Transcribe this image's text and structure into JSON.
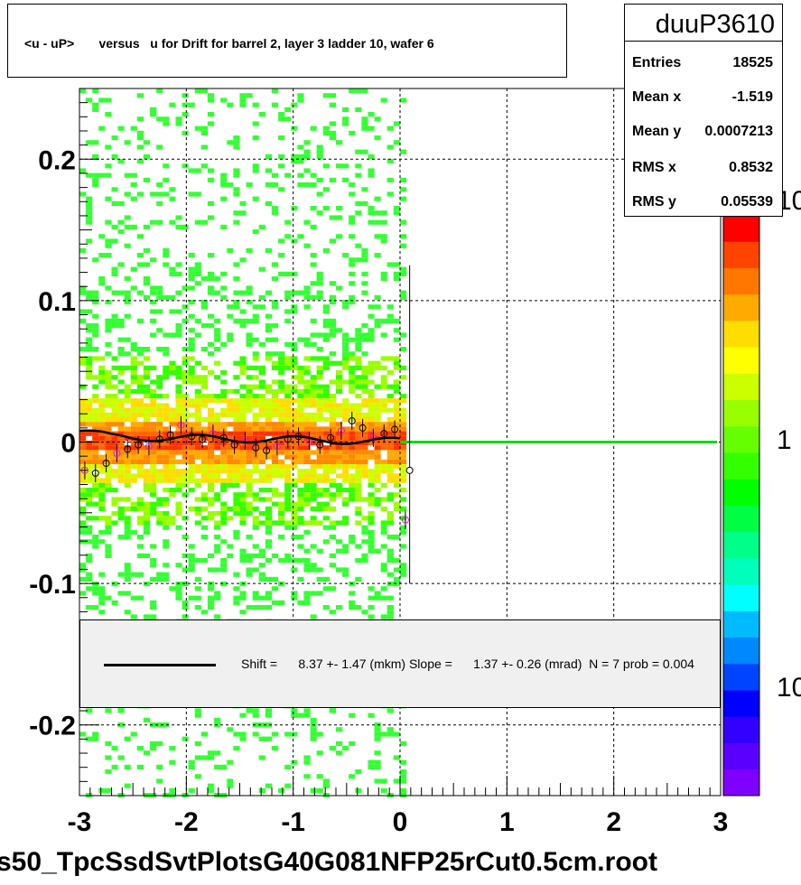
{
  "title": "<u - uP>       versus   u for Drift for barrel 2, layer 3 ladder 10, wafer 6",
  "footer": "s50_TpcSsdSvtPlotsG40G081NFP25rCut0.5cm.root",
  "stats": {
    "name": "duuP3610",
    "rows": [
      {
        "key": "Entries",
        "value": "18525"
      },
      {
        "key": "Mean x",
        "value": "-1.519"
      },
      {
        "key": "Mean y",
        "value": "0.0007213"
      },
      {
        "key": "RMS x",
        "value": "0.8532"
      },
      {
        "key": "RMS y",
        "value": "0.05539"
      }
    ]
  },
  "legend": {
    "text": "Shift =      8.37 +- 1.47 (mkm) Slope =      1.37 +- 0.26 (mrad)  N = 7 prob = 0.004"
  },
  "colors": {
    "fit_line": "#000000",
    "zero_line": "#00dd00",
    "palette": [
      "#7f00ff",
      "#5a00ff",
      "#3300ff",
      "#0000ff",
      "#0044ff",
      "#0088ff",
      "#00bbff",
      "#00ffff",
      "#00ffbb",
      "#00ff88",
      "#00ff44",
      "#00ff00",
      "#33ff00",
      "#66ff00",
      "#99ff00",
      "#ccff00",
      "#ffff00",
      "#ffdd00",
      "#ffaa00",
      "#ff7700",
      "#ff4400",
      "#ff0000"
    ]
  },
  "chart_data": {
    "type": "heatmap",
    "xlim": [
      -3,
      3
    ],
    "ylim": [
      -0.25,
      0.25
    ],
    "x_ticks": [
      -3,
      -2,
      -1,
      0,
      1,
      2,
      3
    ],
    "x_tick_labels": [
      "-3",
      "-2",
      "-1",
      "0",
      "1",
      "2",
      "3"
    ],
    "y_ticks": [
      -0.2,
      -0.1,
      0,
      0.1,
      0.2
    ],
    "y_tick_labels": [
      "-0.2",
      "-0.1",
      "0",
      "0.1",
      "0.2"
    ],
    "z_tick_labels": [
      "10",
      "1",
      "10"
    ],
    "grid": true,
    "occupied_x_range": [
      -3,
      0.05
    ],
    "profile_points": [
      {
        "x": -2.95,
        "y": -0.02
      },
      {
        "x": -2.85,
        "y": -0.022
      },
      {
        "x": -2.75,
        "y": -0.015
      },
      {
        "x": -2.65,
        "y": -0.008
      },
      {
        "x": -2.55,
        "y": -0.005
      },
      {
        "x": -2.45,
        "y": -0.002
      },
      {
        "x": -2.35,
        "y": -0.003
      },
      {
        "x": -2.25,
        "y": 0.002
      },
      {
        "x": -2.15,
        "y": 0.005
      },
      {
        "x": -2.05,
        "y": 0.012
      },
      {
        "x": -1.95,
        "y": 0.004
      },
      {
        "x": -1.85,
        "y": 0.002
      },
      {
        "x": -1.75,
        "y": 0.006
      },
      {
        "x": -1.65,
        "y": 0.003
      },
      {
        "x": -1.55,
        "y": -0.002
      },
      {
        "x": -1.45,
        "y": 0.001
      },
      {
        "x": -1.35,
        "y": -0.004
      },
      {
        "x": -1.25,
        "y": -0.006
      },
      {
        "x": -1.15,
        "y": -0.003
      },
      {
        "x": -1.05,
        "y": 0.002
      },
      {
        "x": -0.95,
        "y": 0.004
      },
      {
        "x": -0.85,
        "y": 0.001
      },
      {
        "x": -0.75,
        "y": -0.002
      },
      {
        "x": -0.65,
        "y": 0.003
      },
      {
        "x": -0.55,
        "y": 0.008
      },
      {
        "x": -0.45,
        "y": 0.015
      },
      {
        "x": -0.35,
        "y": 0.01
      },
      {
        "x": -0.25,
        "y": 0.003
      },
      {
        "x": -0.15,
        "y": 0.006
      },
      {
        "x": -0.05,
        "y": 0.009
      },
      {
        "x": 0.05,
        "y": -0.055
      }
    ],
    "outlier_point": {
      "x": 0.09,
      "y": -0.02,
      "yerr_low": -0.1,
      "yerr_high": 0.125
    },
    "fit_line": {
      "x": [
        -3,
        0
      ],
      "y": [
        0.004,
        0.0005
      ]
    },
    "zero_line": {
      "x": [
        0,
        3
      ],
      "y": [
        0.0,
        0.0
      ]
    }
  }
}
